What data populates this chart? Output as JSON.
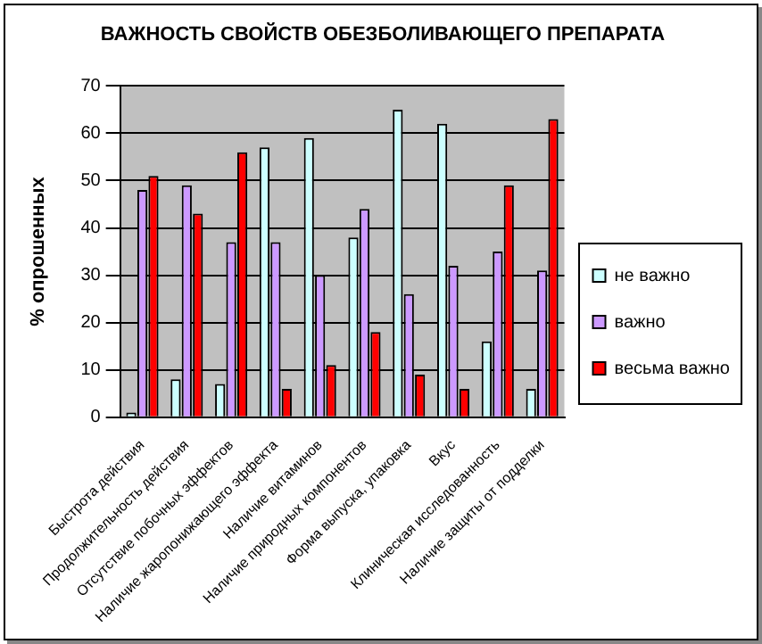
{
  "chart_data": {
    "type": "bar",
    "title": "ВАЖНОСТЬ СВОЙСТВ ОБЕЗБОЛИВАЮЩЕГО ПРЕПАРАТА",
    "ylabel": "% опрошенных",
    "categories": [
      "Быстрота действия",
      "Продолжительность действия",
      "Отсутствие побочных эффектов",
      "Наличие жаропонижающего эффекта",
      "Наличие витаминов",
      "Наличие природных компонентов",
      "Форма выпуска, упаковка",
      "Вкус",
      "Клиническая исследованность",
      "Наличие защиты от подделки"
    ],
    "series": [
      {
        "name": "не важно",
        "color": "#ccffff",
        "values": [
          1,
          8,
          7,
          57,
          59,
          38,
          65,
          62,
          16,
          6
        ]
      },
      {
        "name": "важно",
        "color": "#cc99ff",
        "values": [
          48,
          49,
          37,
          37,
          30,
          44,
          26,
          32,
          35,
          31
        ]
      },
      {
        "name": "весьма важно",
        "color": "#ff0000",
        "values": [
          51,
          43,
          56,
          6,
          11,
          18,
          9,
          6,
          49,
          63
        ]
      }
    ],
    "ylim": [
      0,
      70
    ],
    "yticks": [
      0,
      10,
      20,
      30,
      40,
      50,
      60,
      70
    ],
    "grid": "y",
    "legend": "right"
  }
}
